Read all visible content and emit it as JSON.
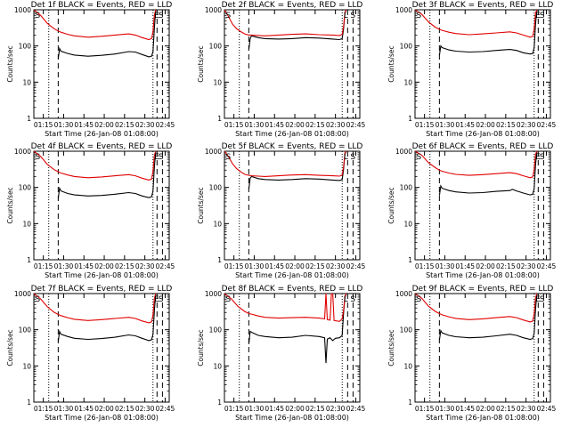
{
  "colors": {
    "events": "#000000",
    "lld": "#e00000",
    "axes": "#000000",
    "background": "#ffffff"
  },
  "shared": {
    "ylabel": "Counts/sec",
    "xlabel": "Start Time (26-Jan-08 01:08:00)",
    "xticks": [
      "01:15",
      "01:30",
      "01:45",
      "02:00",
      "02:15",
      "02:30",
      "02:45"
    ],
    "yticks": [
      "1",
      "10",
      "100",
      "1000"
    ]
  },
  "chart_data": [
    {
      "type": "line",
      "title": "Det 1f BLACK = Events, RED = LLD",
      "xlabel": "Start Time (26-Jan-08 01:08:00)",
      "ylabel": "Counts/sec",
      "x_unit": "minutes after 01:08:00",
      "xlim": [
        0,
        100
      ],
      "ylim": [
        1,
        1000
      ],
      "yscale": "log",
      "vlines_dotted": [
        11,
        88
      ],
      "vlines_dashed": [
        18,
        91,
        95
      ],
      "flags": [
        {
          "x": 1,
          "text": "S"
        },
        {
          "x": 89,
          "text": "E"
        },
        {
          "x": 92,
          "text": "S"
        }
      ],
      "series": [
        {
          "name": "Events",
          "color": "#000000",
          "x": [
            18,
            19,
            20,
            25,
            30,
            40,
            50,
            60,
            70,
            75,
            80,
            85,
            87,
            88,
            89,
            90
          ],
          "y": [
            45,
            85,
            72,
            62,
            56,
            52,
            55,
            60,
            70,
            68,
            58,
            50,
            52,
            70,
            300,
            1000
          ]
        },
        {
          "name": "LLD",
          "color": "#e00000",
          "x": [
            0,
            5,
            10,
            15,
            18,
            20,
            25,
            30,
            40,
            50,
            60,
            70,
            75,
            80,
            85,
            87,
            88,
            89,
            90
          ],
          "y": [
            1000,
            700,
            420,
            300,
            260,
            240,
            210,
            190,
            175,
            185,
            200,
            215,
            200,
            170,
            150,
            160,
            250,
            700,
            1000
          ]
        }
      ]
    },
    {
      "type": "line",
      "title": "Det 2f BLACK = Events, RED = LLD",
      "xlabel": "Start Time (26-Jan-08 01:08:00)",
      "ylabel": "Counts/sec",
      "x_unit": "minutes after 01:08:00",
      "xlim": [
        0,
        100
      ],
      "ylim": [
        1,
        1000
      ],
      "yscale": "log",
      "vlines_dotted": [
        11,
        87
      ],
      "vlines_dashed": [
        18,
        91,
        95
      ],
      "flags": [
        {
          "x": 1,
          "text": "S"
        },
        {
          "x": 88,
          "text": "L"
        },
        {
          "x": 93,
          "text": "S"
        }
      ],
      "series": [
        {
          "name": "Events",
          "color": "#000000",
          "x": [
            18,
            19,
            20,
            25,
            30,
            40,
            50,
            60,
            70,
            80,
            85,
            87,
            88,
            89,
            90
          ],
          "y": [
            80,
            160,
            190,
            170,
            160,
            155,
            160,
            170,
            165,
            155,
            150,
            160,
            300,
            800,
            1000
          ]
        },
        {
          "name": "LLD",
          "color": "#e00000",
          "x": [
            0,
            3,
            6,
            9,
            12,
            15,
            18,
            20,
            25,
            30,
            40,
            50,
            60,
            70,
            80,
            85,
            87,
            88,
            89,
            90
          ],
          "y": [
            1000,
            650,
            400,
            300,
            250,
            215,
            200,
            200,
            195,
            190,
            200,
            210,
            215,
            205,
            200,
            195,
            210,
            350,
            850,
            1000
          ]
        }
      ]
    },
    {
      "type": "line",
      "title": "Det 3f BLACK = Events, RED = LLD",
      "xlabel": "Start Time (26-Jan-08 01:08:00)",
      "ylabel": "Counts/sec",
      "x_unit": "minutes after 01:08:00",
      "xlim": [
        0,
        100
      ],
      "ylim": [
        1,
        1000
      ],
      "yscale": "log",
      "vlines_dotted": [
        11,
        88
      ],
      "vlines_dashed": [
        18,
        91,
        95
      ],
      "flags": [
        {
          "x": 1,
          "text": "S"
        },
        {
          "x": 89,
          "text": "E"
        },
        {
          "x": 92,
          "text": "S"
        }
      ],
      "series": [
        {
          "name": "Events",
          "color": "#000000",
          "x": [
            18,
            19,
            20,
            25,
            30,
            40,
            50,
            60,
            70,
            75,
            80,
            85,
            87,
            88,
            89,
            90
          ],
          "y": [
            55,
            100,
            90,
            78,
            72,
            68,
            70,
            75,
            80,
            75,
            65,
            60,
            62,
            90,
            400,
            1000
          ]
        },
        {
          "name": "LLD",
          "color": "#e00000",
          "x": [
            0,
            5,
            10,
            15,
            18,
            20,
            25,
            30,
            40,
            50,
            60,
            70,
            75,
            80,
            85,
            87,
            88,
            89,
            90
          ],
          "y": [
            1000,
            750,
            460,
            330,
            290,
            270,
            240,
            220,
            205,
            215,
            230,
            245,
            230,
            200,
            175,
            185,
            300,
            800,
            1000
          ]
        }
      ]
    },
    {
      "type": "line",
      "title": "Det 4f BLACK = Events, RED = LLD",
      "xlabel": "Start Time (26-Jan-08 01:08:00)",
      "ylabel": "Counts/sec",
      "x_unit": "minutes after 01:08:00",
      "xlim": [
        0,
        100
      ],
      "ylim": [
        1,
        1000
      ],
      "yscale": "log",
      "vlines_dotted": [
        11,
        88
      ],
      "vlines_dashed": [
        18,
        91,
        95
      ],
      "flags": [
        {
          "x": 1,
          "text": "S"
        },
        {
          "x": 89,
          "text": "E"
        },
        {
          "x": 92,
          "text": "S"
        }
      ],
      "series": [
        {
          "name": "Events",
          "color": "#000000",
          "x": [
            18,
            19,
            20,
            25,
            30,
            40,
            50,
            60,
            70,
            75,
            80,
            85,
            87,
            88,
            89,
            90
          ],
          "y": [
            50,
            95,
            80,
            68,
            62,
            58,
            60,
            65,
            72,
            68,
            58,
            52,
            55,
            80,
            350,
            1000
          ]
        },
        {
          "name": "LLD",
          "color": "#e00000",
          "x": [
            0,
            5,
            10,
            15,
            18,
            20,
            25,
            30,
            40,
            50,
            60,
            70,
            75,
            80,
            85,
            87,
            88,
            89,
            90
          ],
          "y": [
            1000,
            720,
            430,
            310,
            270,
            250,
            220,
            200,
            185,
            195,
            210,
            225,
            210,
            180,
            160,
            170,
            280,
            750,
            1000
          ]
        }
      ]
    },
    {
      "type": "line",
      "title": "Det 5f BLACK = Events, RED = LLD",
      "xlabel": "Start Time (26-Jan-08 01:08:00)",
      "ylabel": "Counts/sec",
      "x_unit": "minutes after 01:08:00",
      "xlim": [
        0,
        100
      ],
      "ylim": [
        1,
        1000
      ],
      "yscale": "log",
      "vlines_dotted": [
        11,
        87
      ],
      "vlines_dashed": [
        18,
        91,
        95
      ],
      "flags": [
        {
          "x": 1,
          "text": "S"
        },
        {
          "x": 88,
          "text": "L"
        },
        {
          "x": 93,
          "text": "S"
        }
      ],
      "series": [
        {
          "name": "Events",
          "color": "#000000",
          "x": [
            18,
            19,
            20,
            25,
            30,
            40,
            50,
            60,
            70,
            80,
            85,
            87,
            88,
            89,
            90
          ],
          "y": [
            90,
            180,
            200,
            175,
            165,
            160,
            165,
            175,
            170,
            160,
            155,
            165,
            320,
            850,
            1000
          ]
        },
        {
          "name": "LLD",
          "color": "#e00000",
          "x": [
            0,
            3,
            6,
            9,
            12,
            15,
            18,
            20,
            25,
            30,
            40,
            50,
            60,
            70,
            80,
            85,
            87,
            88,
            89,
            90
          ],
          "y": [
            1000,
            700,
            450,
            330,
            270,
            230,
            215,
            210,
            205,
            200,
            210,
            220,
            225,
            215,
            210,
            205,
            220,
            380,
            900,
            1000
          ]
        }
      ]
    },
    {
      "type": "line",
      "title": "Det 6f BLACK = Events, RED = LLD",
      "xlabel": "Start Time (26-Jan-08 01:08:00)",
      "ylabel": "Counts/sec",
      "x_unit": "minutes after 01:08:00",
      "xlim": [
        0,
        100
      ],
      "ylim": [
        1,
        1000
      ],
      "yscale": "log",
      "vlines_dotted": [
        11,
        88
      ],
      "vlines_dashed": [
        18,
        91,
        95
      ],
      "flags": [
        {
          "x": 1,
          "text": "S"
        },
        {
          "x": 89,
          "text": "E"
        },
        {
          "x": 92,
          "text": "S"
        }
      ],
      "series": [
        {
          "name": "Events",
          "color": "#000000",
          "x": [
            18,
            19,
            20,
            25,
            30,
            40,
            50,
            60,
            70,
            72,
            75,
            80,
            85,
            87,
            88,
            89,
            90
          ],
          "y": [
            60,
            110,
            95,
            82,
            75,
            70,
            72,
            78,
            82,
            88,
            80,
            70,
            62,
            65,
            95,
            420,
            1000
          ]
        },
        {
          "name": "LLD",
          "color": "#e00000",
          "x": [
            0,
            5,
            10,
            15,
            18,
            20,
            25,
            30,
            40,
            50,
            60,
            70,
            75,
            80,
            85,
            87,
            88,
            89,
            90
          ],
          "y": [
            1000,
            780,
            480,
            350,
            300,
            280,
            250,
            230,
            215,
            225,
            240,
            255,
            240,
            210,
            185,
            195,
            320,
            820,
            1000
          ]
        }
      ]
    },
    {
      "type": "line",
      "title": "Det 7f BLACK = Events, RED = LLD",
      "xlabel": "Start Time (26-Jan-08 01:08:00)",
      "ylabel": "Counts/sec",
      "x_unit": "minutes after 01:08:00",
      "xlim": [
        0,
        100
      ],
      "ylim": [
        1,
        1000
      ],
      "yscale": "log",
      "vlines_dotted": [
        11,
        88
      ],
      "vlines_dashed": [
        18,
        91,
        95
      ],
      "flags": [
        {
          "x": 1,
          "text": "S"
        },
        {
          "x": 89,
          "text": "E"
        },
        {
          "x": 92,
          "text": "S"
        }
      ],
      "series": [
        {
          "name": "Events",
          "color": "#000000",
          "x": [
            18,
            19,
            20,
            25,
            30,
            40,
            50,
            60,
            70,
            75,
            80,
            85,
            87,
            88,
            89,
            90
          ],
          "y": [
            48,
            90,
            75,
            65,
            58,
            54,
            57,
            62,
            72,
            68,
            58,
            50,
            53,
            75,
            320,
            1000
          ]
        },
        {
          "name": "LLD",
          "color": "#e00000",
          "x": [
            0,
            5,
            10,
            15,
            18,
            20,
            25,
            30,
            40,
            50,
            60,
            70,
            75,
            80,
            85,
            87,
            88,
            89,
            90
          ],
          "y": [
            1000,
            710,
            430,
            305,
            265,
            245,
            215,
            195,
            180,
            190,
            205,
            220,
            205,
            175,
            155,
            165,
            260,
            720,
            1000
          ]
        }
      ]
    },
    {
      "type": "line",
      "title": "Det 8f BLACK = Events, RED = LLD",
      "xlabel": "Start Time (26-Jan-08 01:08:00)",
      "ylabel": "Counts/sec",
      "x_unit": "minutes after 01:08:00",
      "xlim": [
        0,
        100
      ],
      "ylim": [
        1,
        1000
      ],
      "yscale": "log",
      "vlines_dotted": [
        11,
        87
      ],
      "vlines_dashed": [
        18,
        91,
        95
      ],
      "flags": [
        {
          "x": 1,
          "text": "S"
        },
        {
          "x": 88,
          "text": "L"
        },
        {
          "x": 93,
          "text": "S"
        }
      ],
      "series": [
        {
          "name": "Events",
          "color": "#000000",
          "x": [
            18,
            19,
            20,
            25,
            30,
            40,
            50,
            60,
            70,
            74,
            75,
            76,
            78,
            80,
            82,
            85,
            87,
            88,
            89,
            90
          ],
          "y": [
            40,
            90,
            85,
            70,
            65,
            60,
            62,
            70,
            65,
            60,
            12,
            55,
            60,
            50,
            58,
            60,
            70,
            300,
            800,
            1000
          ]
        },
        {
          "name": "LLD",
          "color": "#e00000",
          "x": [
            0,
            5,
            10,
            15,
            18,
            20,
            25,
            30,
            40,
            50,
            60,
            70,
            74,
            75,
            76,
            78,
            79,
            80,
            81,
            85,
            87,
            88,
            89,
            90
          ],
          "y": [
            1000,
            720,
            440,
            320,
            280,
            270,
            240,
            220,
            210,
            215,
            220,
            210,
            200,
            1000,
            190,
            185,
            1000,
            1000,
            180,
            170,
            200,
            350,
            850,
            1000
          ]
        }
      ]
    },
    {
      "type": "line",
      "title": "Det 9f BLACK = Events, RED = LLD",
      "xlabel": "Start Time (26-Jan-08 01:08:00)",
      "ylabel": "Counts/sec",
      "x_unit": "minutes after 01:08:00",
      "xlim": [
        0,
        100
      ],
      "ylim": [
        1,
        1000
      ],
      "yscale": "log",
      "vlines_dotted": [
        11,
        88
      ],
      "vlines_dashed": [
        18,
        91,
        95
      ],
      "flags": [
        {
          "x": 1,
          "text": "S"
        },
        {
          "x": 89,
          "text": "E"
        },
        {
          "x": 92,
          "text": "S"
        }
      ],
      "series": [
        {
          "name": "Events",
          "color": "#000000",
          "x": [
            18,
            19,
            20,
            25,
            30,
            40,
            50,
            60,
            70,
            75,
            80,
            85,
            87,
            88,
            89,
            90
          ],
          "y": [
            52,
            95,
            82,
            70,
            64,
            60,
            62,
            68,
            75,
            70,
            60,
            54,
            57,
            82,
            360,
            1000
          ]
        },
        {
          "name": "LLD",
          "color": "#e00000",
          "x": [
            0,
            5,
            10,
            15,
            18,
            20,
            25,
            30,
            40,
            50,
            60,
            70,
            75,
            80,
            85,
            87,
            88,
            89,
            90
          ],
          "y": [
            1000,
            740,
            445,
            320,
            280,
            258,
            228,
            206,
            190,
            200,
            216,
            232,
            216,
            186,
            164,
            174,
            285,
            760,
            1000
          ]
        }
      ]
    }
  ]
}
